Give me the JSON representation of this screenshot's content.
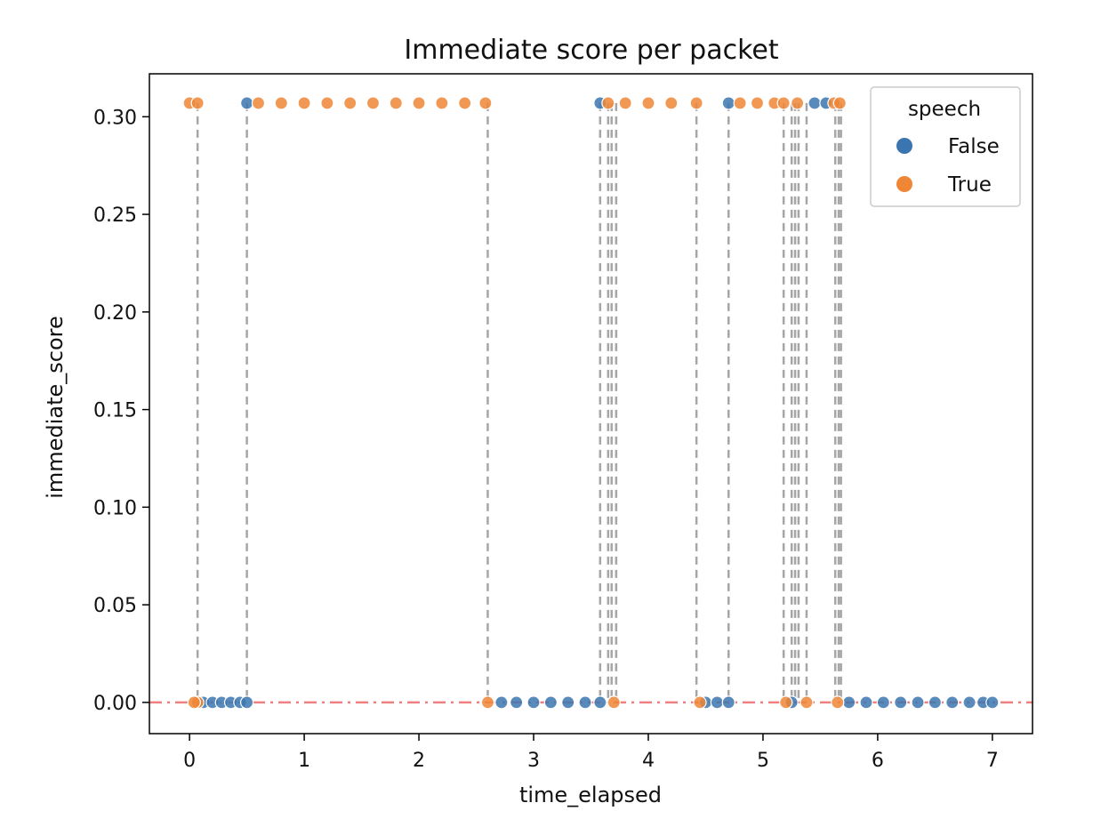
{
  "chart_data": {
    "type": "scatter",
    "title": "Immediate score per packet",
    "xlabel": "time_elapsed",
    "ylabel": "immediate_score",
    "xlim": [
      -0.35,
      7.35
    ],
    "ylim": [
      -0.016,
      0.322
    ],
    "xticks": [
      0,
      1,
      2,
      3,
      4,
      5,
      6,
      7
    ],
    "yticks": [
      0.0,
      0.05,
      0.1,
      0.15,
      0.2,
      0.25,
      0.3
    ],
    "ytick_labels": [
      "0.00",
      "0.05",
      "0.10",
      "0.15",
      "0.20",
      "0.25",
      "0.30"
    ],
    "grid": false,
    "legend": {
      "title": "speech",
      "placement": "top-right",
      "entries": [
        "False",
        "True"
      ]
    },
    "colors": {
      "False": "#3b75af",
      "True": "#ef8636",
      "connector": "#a6a6a6",
      "reference_line": "#f08080"
    },
    "reference_line": {
      "y": 0.0,
      "style": "dash-dot"
    },
    "high_value": 0.307,
    "series": [
      {
        "name": "False",
        "points": [
          [
            0.12,
            0
          ],
          [
            0.2,
            0
          ],
          [
            0.28,
            0
          ],
          [
            0.36,
            0
          ],
          [
            0.44,
            0
          ],
          [
            0.5,
            0
          ],
          [
            0.5,
            0.307
          ],
          [
            2.72,
            0
          ],
          [
            2.85,
            0
          ],
          [
            3.0,
            0
          ],
          [
            3.15,
            0
          ],
          [
            3.3,
            0
          ],
          [
            3.45,
            0
          ],
          [
            3.58,
            0
          ],
          [
            3.58,
            0.307
          ],
          [
            4.5,
            0
          ],
          [
            4.6,
            0
          ],
          [
            4.7,
            0
          ],
          [
            4.7,
            0.307
          ],
          [
            5.25,
            0
          ],
          [
            5.45,
            0.307
          ],
          [
            5.55,
            0.307
          ],
          [
            5.75,
            0
          ],
          [
            5.9,
            0
          ],
          [
            6.05,
            0
          ],
          [
            6.2,
            0
          ],
          [
            6.35,
            0
          ],
          [
            6.5,
            0
          ],
          [
            6.65,
            0
          ],
          [
            6.8,
            0
          ],
          [
            6.92,
            0
          ],
          [
            7.0,
            0
          ]
        ]
      },
      {
        "name": "True",
        "points": [
          [
            0.0,
            0.307
          ],
          [
            0.07,
            0.307
          ],
          [
            0.07,
            0
          ],
          [
            0.04,
            0
          ],
          [
            0.6,
            0.307
          ],
          [
            0.8,
            0.307
          ],
          [
            1.0,
            0.307
          ],
          [
            1.2,
            0.307
          ],
          [
            1.4,
            0.307
          ],
          [
            1.6,
            0.307
          ],
          [
            1.8,
            0.307
          ],
          [
            2.0,
            0.307
          ],
          [
            2.2,
            0.307
          ],
          [
            2.4,
            0.307
          ],
          [
            2.58,
            0.307
          ],
          [
            2.6,
            0
          ],
          [
            3.65,
            0.307
          ],
          [
            3.8,
            0.307
          ],
          [
            4.0,
            0.307
          ],
          [
            4.2,
            0.307
          ],
          [
            4.42,
            0.307
          ],
          [
            3.7,
            0
          ],
          [
            4.45,
            0
          ],
          [
            4.8,
            0.307
          ],
          [
            4.95,
            0.307
          ],
          [
            5.1,
            0.307
          ],
          [
            5.18,
            0.307
          ],
          [
            5.3,
            0.307
          ],
          [
            5.2,
            0
          ],
          [
            5.38,
            0
          ],
          [
            5.62,
            0.307
          ],
          [
            5.67,
            0.307
          ],
          [
            5.65,
            0
          ]
        ]
      }
    ],
    "transitions": [
      0.07,
      0.5,
      2.6,
      3.58,
      3.65,
      3.68,
      3.72,
      4.42,
      4.7,
      5.18,
      5.25,
      5.28,
      5.31,
      5.38,
      5.63,
      5.66,
      5.68
    ]
  }
}
